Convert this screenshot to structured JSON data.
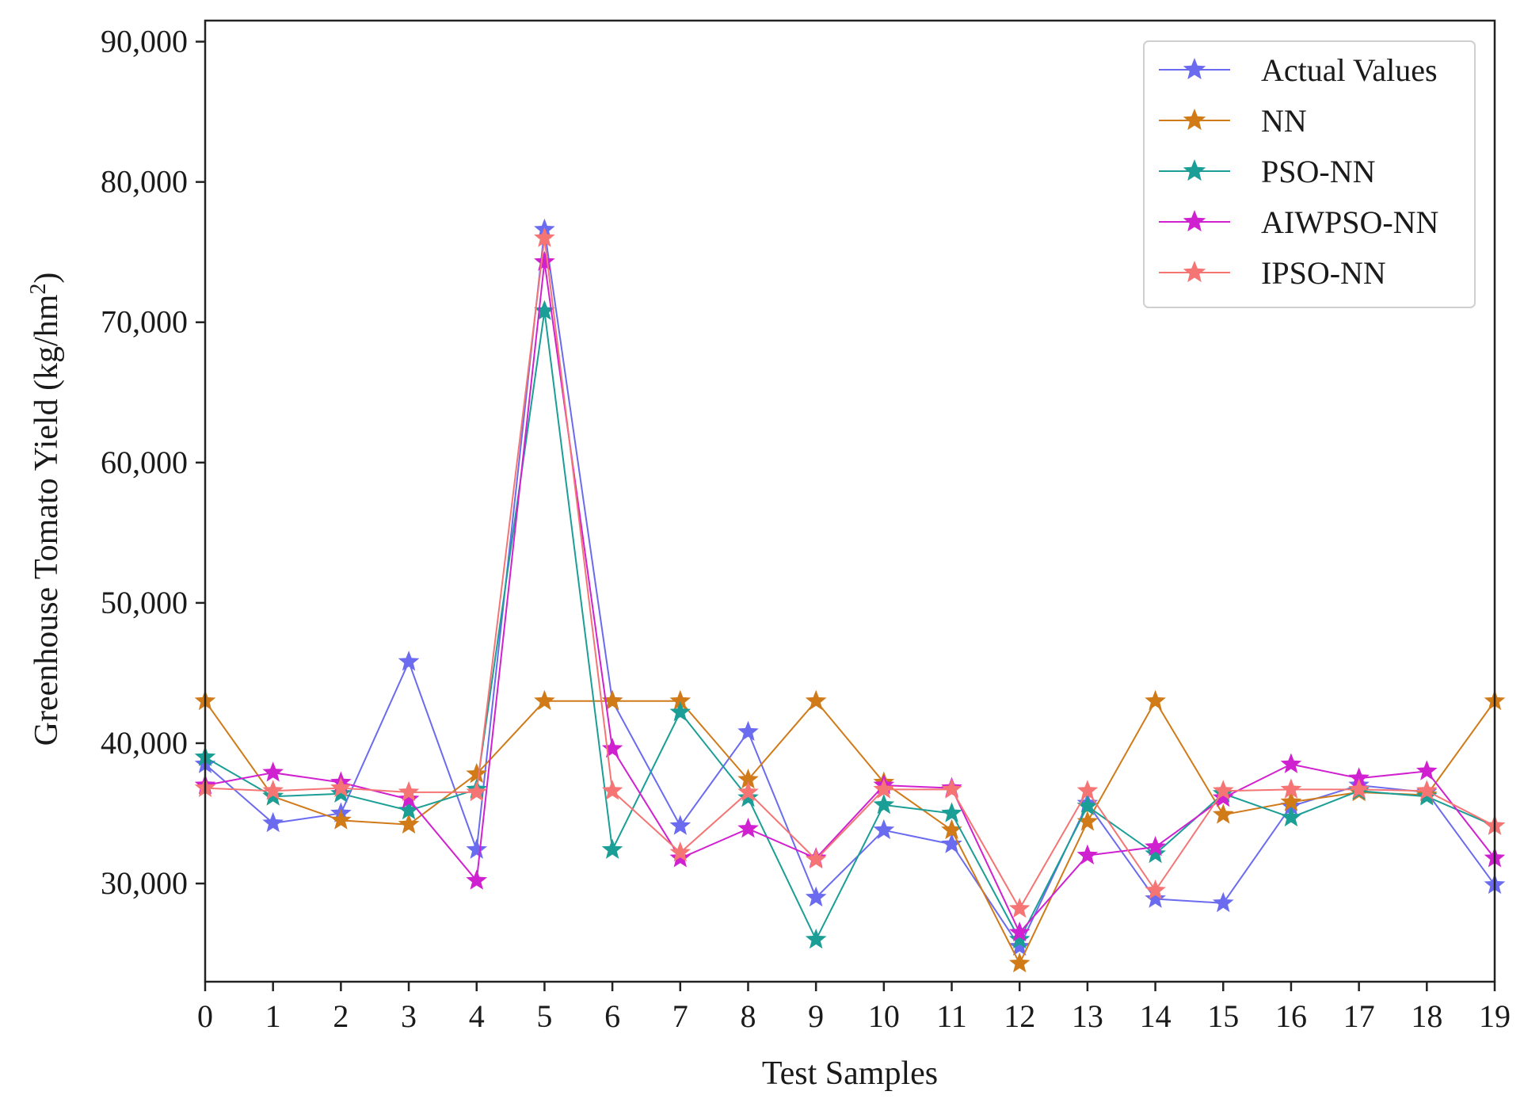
{
  "chart_data": {
    "type": "line",
    "title": "",
    "xlabel": "Test Samples",
    "ylabel": "Greenhouse Tomato Yield (kg/hm",
    "ylabel_sup": "2",
    "ylabel_end": ")",
    "x": [
      0,
      1,
      2,
      3,
      4,
      5,
      6,
      7,
      8,
      9,
      10,
      11,
      12,
      13,
      14,
      15,
      16,
      17,
      18,
      19
    ],
    "xlim": [
      0,
      19
    ],
    "ylim": [
      23000,
      91500
    ],
    "yticks": [
      30000,
      40000,
      50000,
      60000,
      70000,
      80000,
      90000
    ],
    "ytick_labels": [
      "30,000",
      "40,000",
      "50,000",
      "60,000",
      "70,000",
      "80,000",
      "90,000"
    ],
    "grid": false,
    "legend_position": "top-right",
    "series": [
      {
        "name": "Actual Values",
        "color": "#6b6bf0",
        "values": [
          38500,
          34300,
          35000,
          45800,
          32400,
          76600,
          43000,
          34100,
          40800,
          29000,
          33800,
          32800,
          25500,
          35700,
          28900,
          28600,
          35500,
          37000,
          36500,
          29900
        ]
      },
      {
        "name": "NN",
        "color": "#d07a18",
        "values": [
          43000,
          36200,
          34500,
          34200,
          37800,
          43000,
          43000,
          43000,
          37400,
          43000,
          37200,
          33800,
          24300,
          34400,
          43000,
          34900,
          35800,
          36500,
          36300,
          43000
        ]
      },
      {
        "name": "PSO-NN",
        "color": "#1a9e96",
        "values": [
          39000,
          36200,
          36400,
          35200,
          36700,
          70800,
          32400,
          42200,
          36100,
          26000,
          35600,
          35000,
          26000,
          35500,
          32100,
          36400,
          34700,
          36600,
          36200,
          34100
        ]
      },
      {
        "name": "AIWPSO-NN",
        "color": "#d021d0",
        "values": [
          37000,
          37900,
          37200,
          36000,
          30200,
          74300,
          39600,
          31800,
          33900,
          31800,
          37000,
          36800,
          26500,
          32000,
          32600,
          36100,
          38500,
          37500,
          38000,
          31800
        ]
      },
      {
        "name": "IPSO-NN",
        "color": "#f57575",
        "values": [
          36800,
          36600,
          36800,
          36500,
          36500,
          76000,
          36600,
          32200,
          36500,
          31700,
          36700,
          36700,
          28200,
          36600,
          29500,
          36600,
          36700,
          36700,
          36600,
          34100
        ]
      }
    ]
  }
}
